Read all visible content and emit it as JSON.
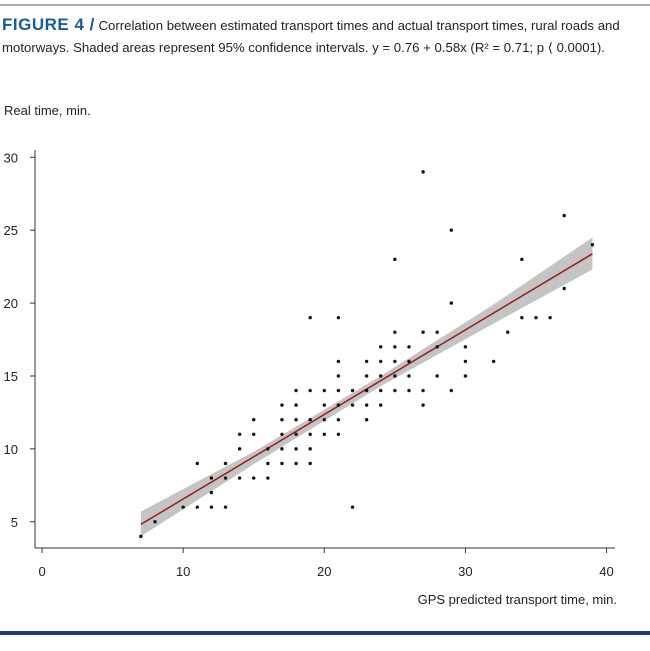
{
  "chart_data": {
    "type": "scatter",
    "figure_label": "FIGURE 4 /",
    "caption": "Correlation between estimated transport times and actual transport times, rural roads and motorways. Shaded areas represent 95% confidence intervals. y = 0.76 + 0.58x (R² = 0.71; p ⟨ 0.0001).",
    "ylabel": "Real time, min.",
    "xlabel": "GPS predicted transport time, min.",
    "xlim": [
      -0.5,
      40.6
    ],
    "ylim": [
      3.2,
      30.5
    ],
    "xticks": [
      0,
      10,
      20,
      30,
      40
    ],
    "yticks": [
      5,
      10,
      15,
      20,
      25,
      30
    ],
    "color": "#111111",
    "x": [
      7,
      8,
      10,
      11,
      11,
      12,
      12,
      12,
      13,
      13,
      13,
      14,
      14,
      14,
      15,
      15,
      15,
      16,
      16,
      16,
      17,
      17,
      17,
      17,
      17,
      18,
      18,
      18,
      18,
      18,
      18,
      19,
      19,
      19,
      19,
      19,
      19,
      20,
      20,
      20,
      20,
      21,
      21,
      21,
      21,
      21,
      21,
      21,
      22,
      22,
      22,
      23,
      23,
      23,
      23,
      23,
      24,
      24,
      24,
      24,
      24,
      25,
      25,
      25,
      25,
      25,
      25,
      26,
      26,
      26,
      26,
      27,
      27,
      27,
      27,
      28,
      28,
      28,
      29,
      29,
      29,
      30,
      30,
      30,
      32,
      33,
      34,
      34,
      35,
      36,
      37,
      37,
      39
    ],
    "values": [
      4,
      5,
      6,
      6,
      9,
      6,
      7,
      8,
      6,
      8,
      9,
      8,
      10,
      11,
      8,
      11,
      12,
      8,
      9,
      10,
      9,
      10,
      11,
      12,
      13,
      9,
      10,
      11,
      12,
      13,
      14,
      9,
      10,
      11,
      12,
      14,
      19,
      11,
      12,
      13,
      14,
      11,
      12,
      13,
      14,
      15,
      16,
      19,
      6,
      13,
      14,
      12,
      13,
      14,
      15,
      16,
      13,
      14,
      15,
      16,
      17,
      14,
      15,
      16,
      17,
      18,
      23,
      14,
      15,
      16,
      17,
      13,
      14,
      18,
      29,
      15,
      17,
      18,
      14,
      20,
      25,
      15,
      16,
      17,
      16,
      18,
      19,
      23,
      19,
      19,
      21,
      26,
      24
    ],
    "fit": {
      "x": [
        7,
        39
      ],
      "y": [
        4.82,
        23.38
      ],
      "color": "#9b1c1c"
    },
    "band": {
      "x": [
        7,
        15,
        24,
        32,
        39
      ],
      "lower": [
        4.0,
        8.95,
        14.3,
        18.6,
        22.3
      ],
      "upper": [
        5.7,
        9.8,
        15.0,
        19.9,
        24.5
      ],
      "color": "#c4c4c4"
    }
  }
}
